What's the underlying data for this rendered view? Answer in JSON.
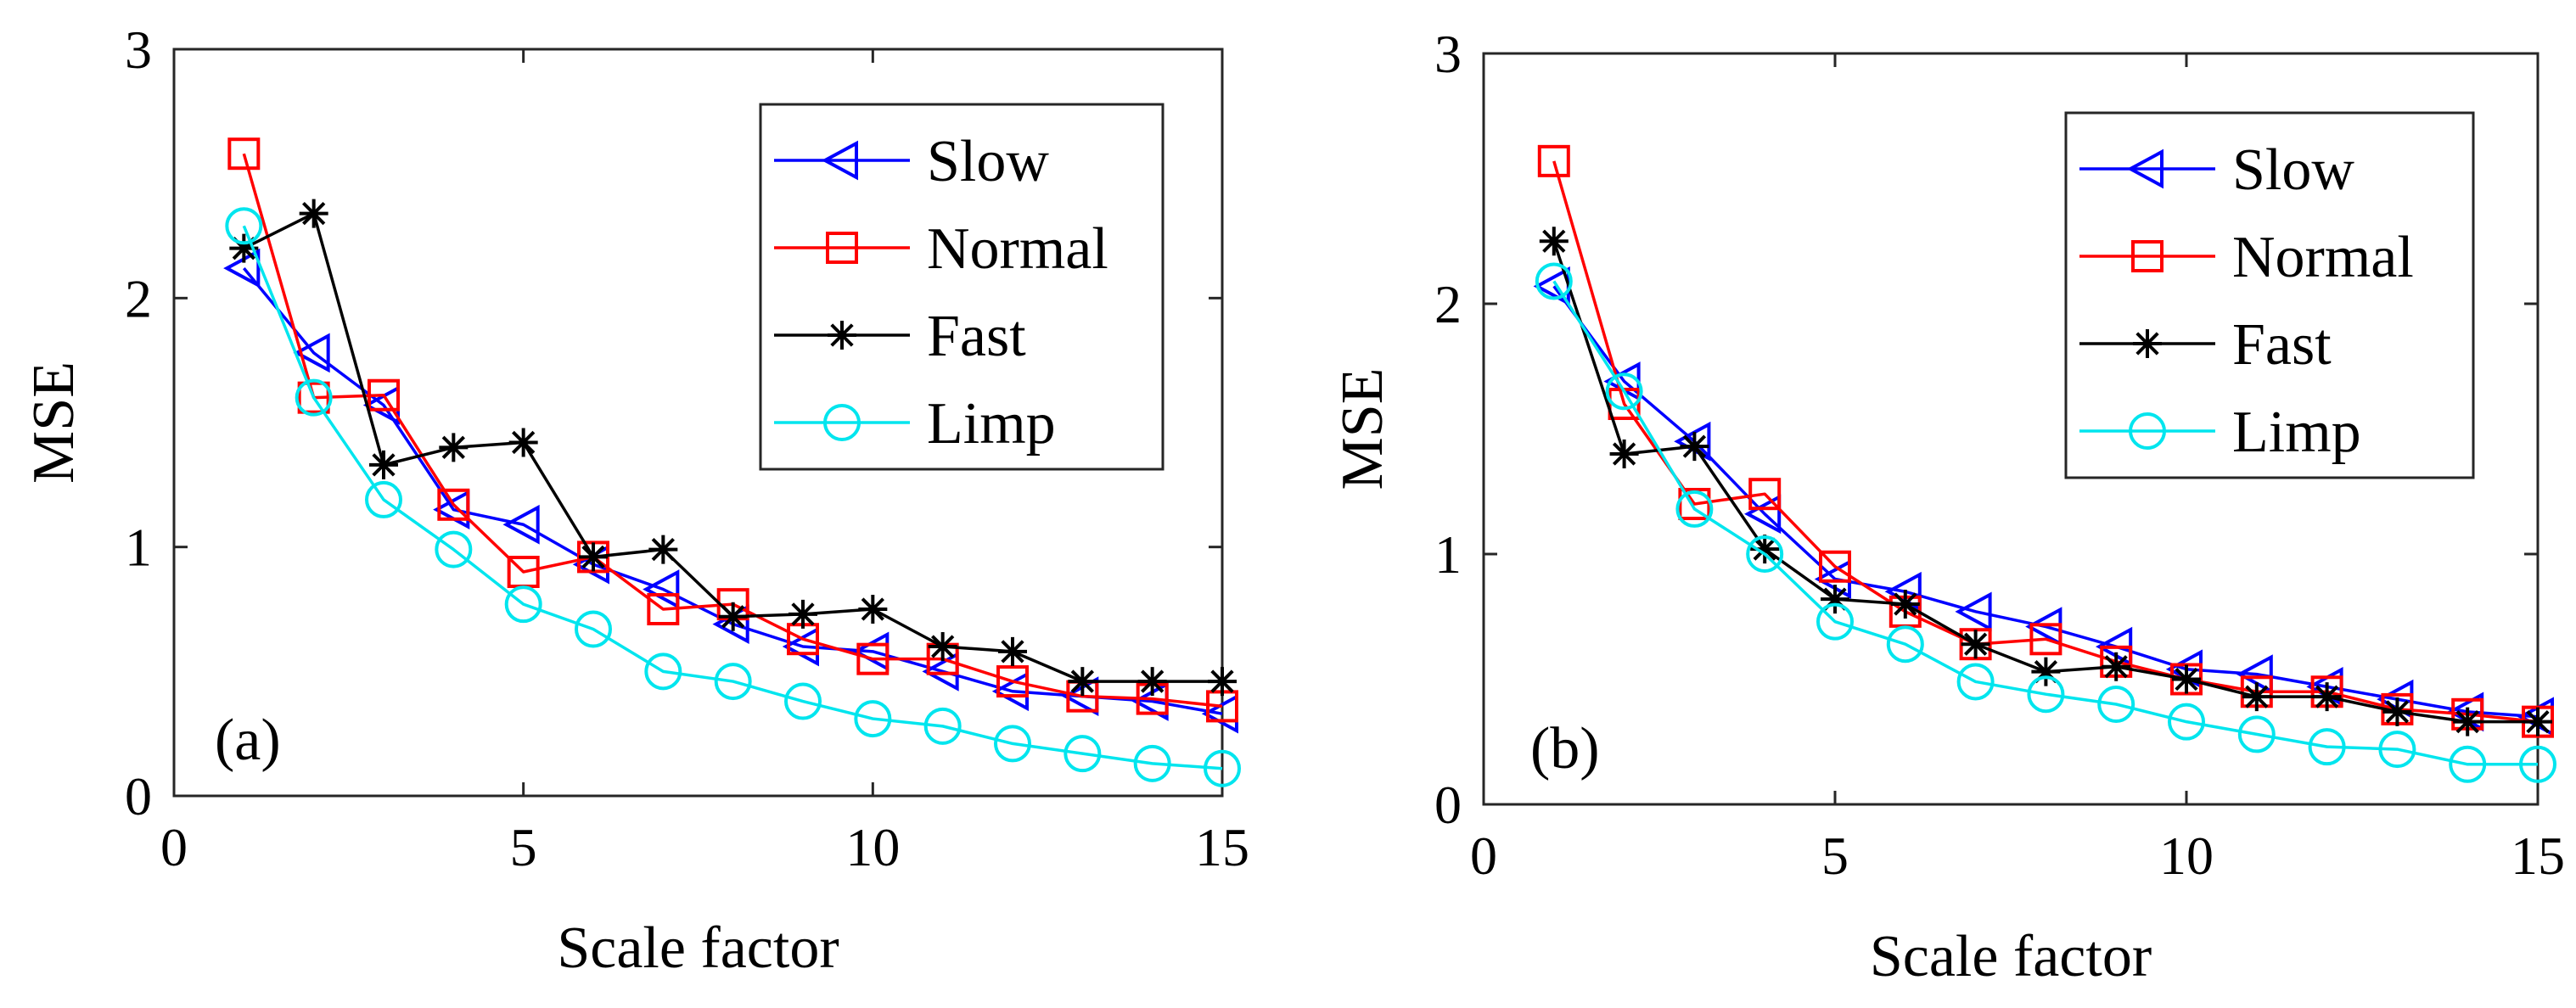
{
  "chart_data": [
    {
      "type": "line",
      "panel_label": "(a)",
      "xlabel": "Scale factor",
      "ylabel": "MSE",
      "xlim": [
        0,
        15
      ],
      "ylim": [
        0,
        3
      ],
      "xticks": [
        0,
        5,
        10,
        15
      ],
      "yticks": [
        0,
        1,
        2,
        3
      ],
      "x": [
        1,
        2,
        3,
        4,
        5,
        6,
        7,
        8,
        9,
        10,
        11,
        12,
        13,
        14,
        15
      ],
      "legend_position": "top-right",
      "series": [
        {
          "name": "Slow",
          "color": "#0000ff",
          "marker": "triangle-left",
          "values": [
            2.12,
            1.78,
            1.57,
            1.15,
            1.09,
            0.93,
            0.83,
            0.69,
            0.6,
            0.58,
            0.5,
            0.42,
            0.4,
            0.38,
            0.33
          ]
        },
        {
          "name": "Normal",
          "color": "#ff0000",
          "marker": "square",
          "values": [
            2.58,
            1.6,
            1.61,
            1.17,
            0.9,
            0.96,
            0.75,
            0.77,
            0.63,
            0.55,
            0.55,
            0.46,
            0.4,
            0.39,
            0.36
          ]
        },
        {
          "name": "Fast",
          "color": "#000000",
          "marker": "asterisk",
          "values": [
            2.2,
            2.34,
            1.33,
            1.4,
            1.42,
            0.96,
            0.99,
            0.72,
            0.73,
            0.75,
            0.6,
            0.58,
            0.46,
            0.46,
            0.46
          ]
        },
        {
          "name": "Limp",
          "color": "#00e5ee",
          "marker": "circle",
          "values": [
            2.29,
            1.6,
            1.19,
            0.99,
            0.77,
            0.67,
            0.5,
            0.46,
            0.38,
            0.31,
            0.28,
            0.21,
            0.17,
            0.13,
            0.11
          ]
        }
      ]
    },
    {
      "type": "line",
      "panel_label": "(b)",
      "xlabel": "Scale factor",
      "ylabel": "MSE",
      "xlim": [
        0,
        15
      ],
      "ylim": [
        0,
        3
      ],
      "xticks": [
        0,
        5,
        10,
        15
      ],
      "yticks": [
        0,
        1,
        2,
        3
      ],
      "x": [
        1,
        2,
        3,
        4,
        5,
        6,
        7,
        8,
        9,
        10,
        11,
        12,
        13,
        14,
        15
      ],
      "legend_position": "top-right",
      "series": [
        {
          "name": "Slow",
          "color": "#0000ff",
          "marker": "triangle-left",
          "values": [
            2.07,
            1.69,
            1.45,
            1.16,
            0.9,
            0.85,
            0.77,
            0.71,
            0.63,
            0.54,
            0.52,
            0.47,
            0.42,
            0.37,
            0.35
          ]
        },
        {
          "name": "Normal",
          "color": "#ff0000",
          "marker": "square",
          "values": [
            2.57,
            1.6,
            1.2,
            1.24,
            0.95,
            0.77,
            0.64,
            0.66,
            0.57,
            0.5,
            0.45,
            0.45,
            0.38,
            0.36,
            0.33
          ]
        },
        {
          "name": "Fast",
          "color": "#000000",
          "marker": "asterisk",
          "values": [
            2.25,
            1.4,
            1.43,
            1.02,
            0.82,
            0.8,
            0.64,
            0.53,
            0.55,
            0.5,
            0.43,
            0.43,
            0.37,
            0.33,
            0.33
          ]
        },
        {
          "name": "Limp",
          "color": "#00e5ee",
          "marker": "circle",
          "values": [
            2.09,
            1.65,
            1.18,
            1.0,
            0.73,
            0.64,
            0.49,
            0.44,
            0.4,
            0.33,
            0.28,
            0.23,
            0.22,
            0.16,
            0.16
          ]
        }
      ]
    }
  ]
}
